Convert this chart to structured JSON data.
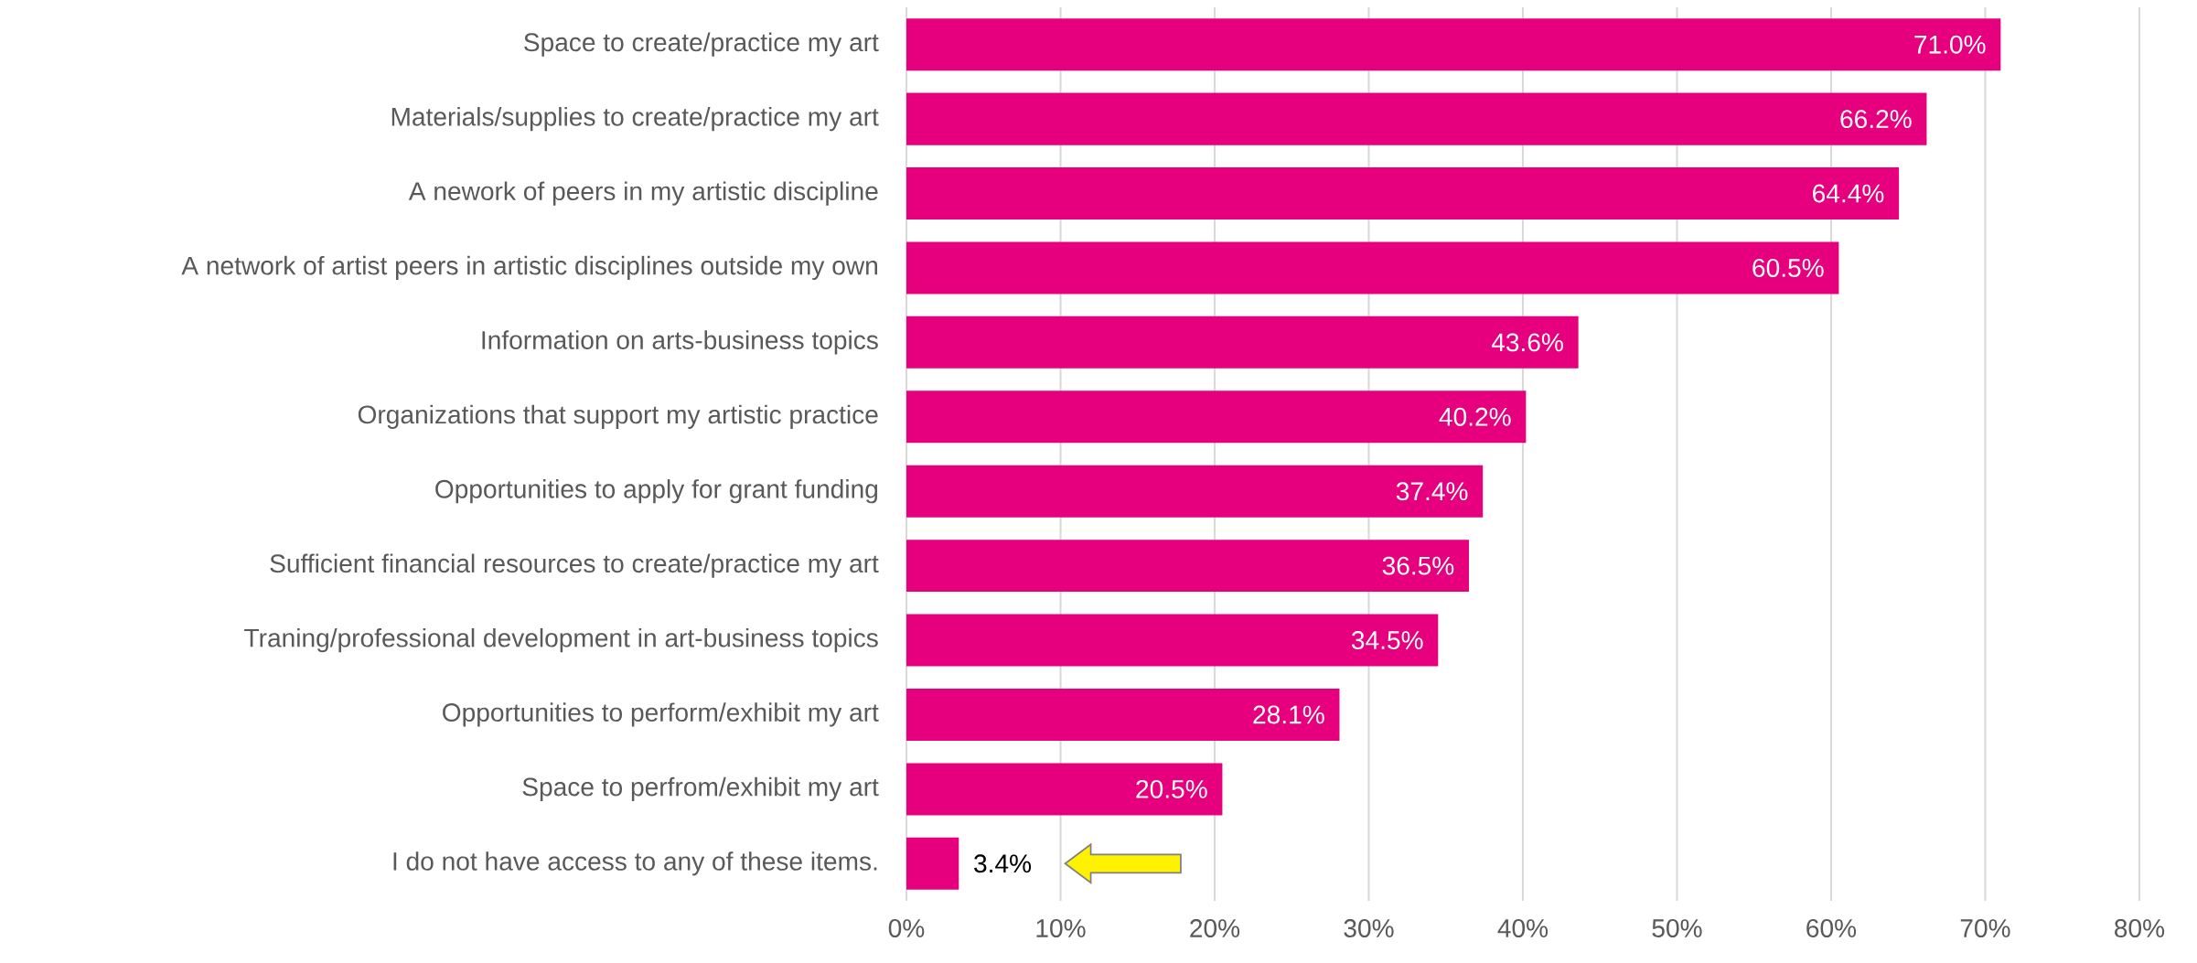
{
  "chart_data": {
    "type": "bar",
    "orientation": "horizontal",
    "categories": [
      "Space to create/practice my art",
      "Materials/supplies to create/practice my art",
      "A nework of peers in my artistic discipline",
      "A network of artist peers in artistic disciplines outside my own",
      "Information on arts-business topics",
      "Organizations that support my artistic practice",
      "Opportunities to apply for grant funding",
      "Sufficient financial resources to create/practice my art",
      "Traning/professional development in art-business topics",
      "Opportunities to perform/exhibit my art",
      "Space to perfrom/exhibit my art",
      "I do not have access to any of these items."
    ],
    "values": [
      71.0,
      66.2,
      64.4,
      60.5,
      43.6,
      40.2,
      37.4,
      36.5,
      34.5,
      28.1,
      20.5,
      3.4
    ],
    "value_labels": [
      "71.0%",
      "66.2%",
      "64.4%",
      "60.5%",
      "43.6%",
      "40.2%",
      "37.4%",
      "36.5%",
      "34.5%",
      "28.1%",
      "20.5%",
      "3.4%"
    ],
    "color": "#e6007e",
    "xlim": [
      0,
      80
    ],
    "xticks": [
      {
        "value": 0,
        "label": "0%"
      },
      {
        "value": 10,
        "label": "10%"
      },
      {
        "value": 20,
        "label": "20%"
      },
      {
        "value": 30,
        "label": "30%"
      },
      {
        "value": 40,
        "label": "40%"
      },
      {
        "value": 50,
        "label": "50%"
      },
      {
        "value": 60,
        "label": "60%"
      },
      {
        "value": 70,
        "label": "70%"
      },
      {
        "value": 80,
        "label": "80%"
      }
    ],
    "grid": "x"
  }
}
